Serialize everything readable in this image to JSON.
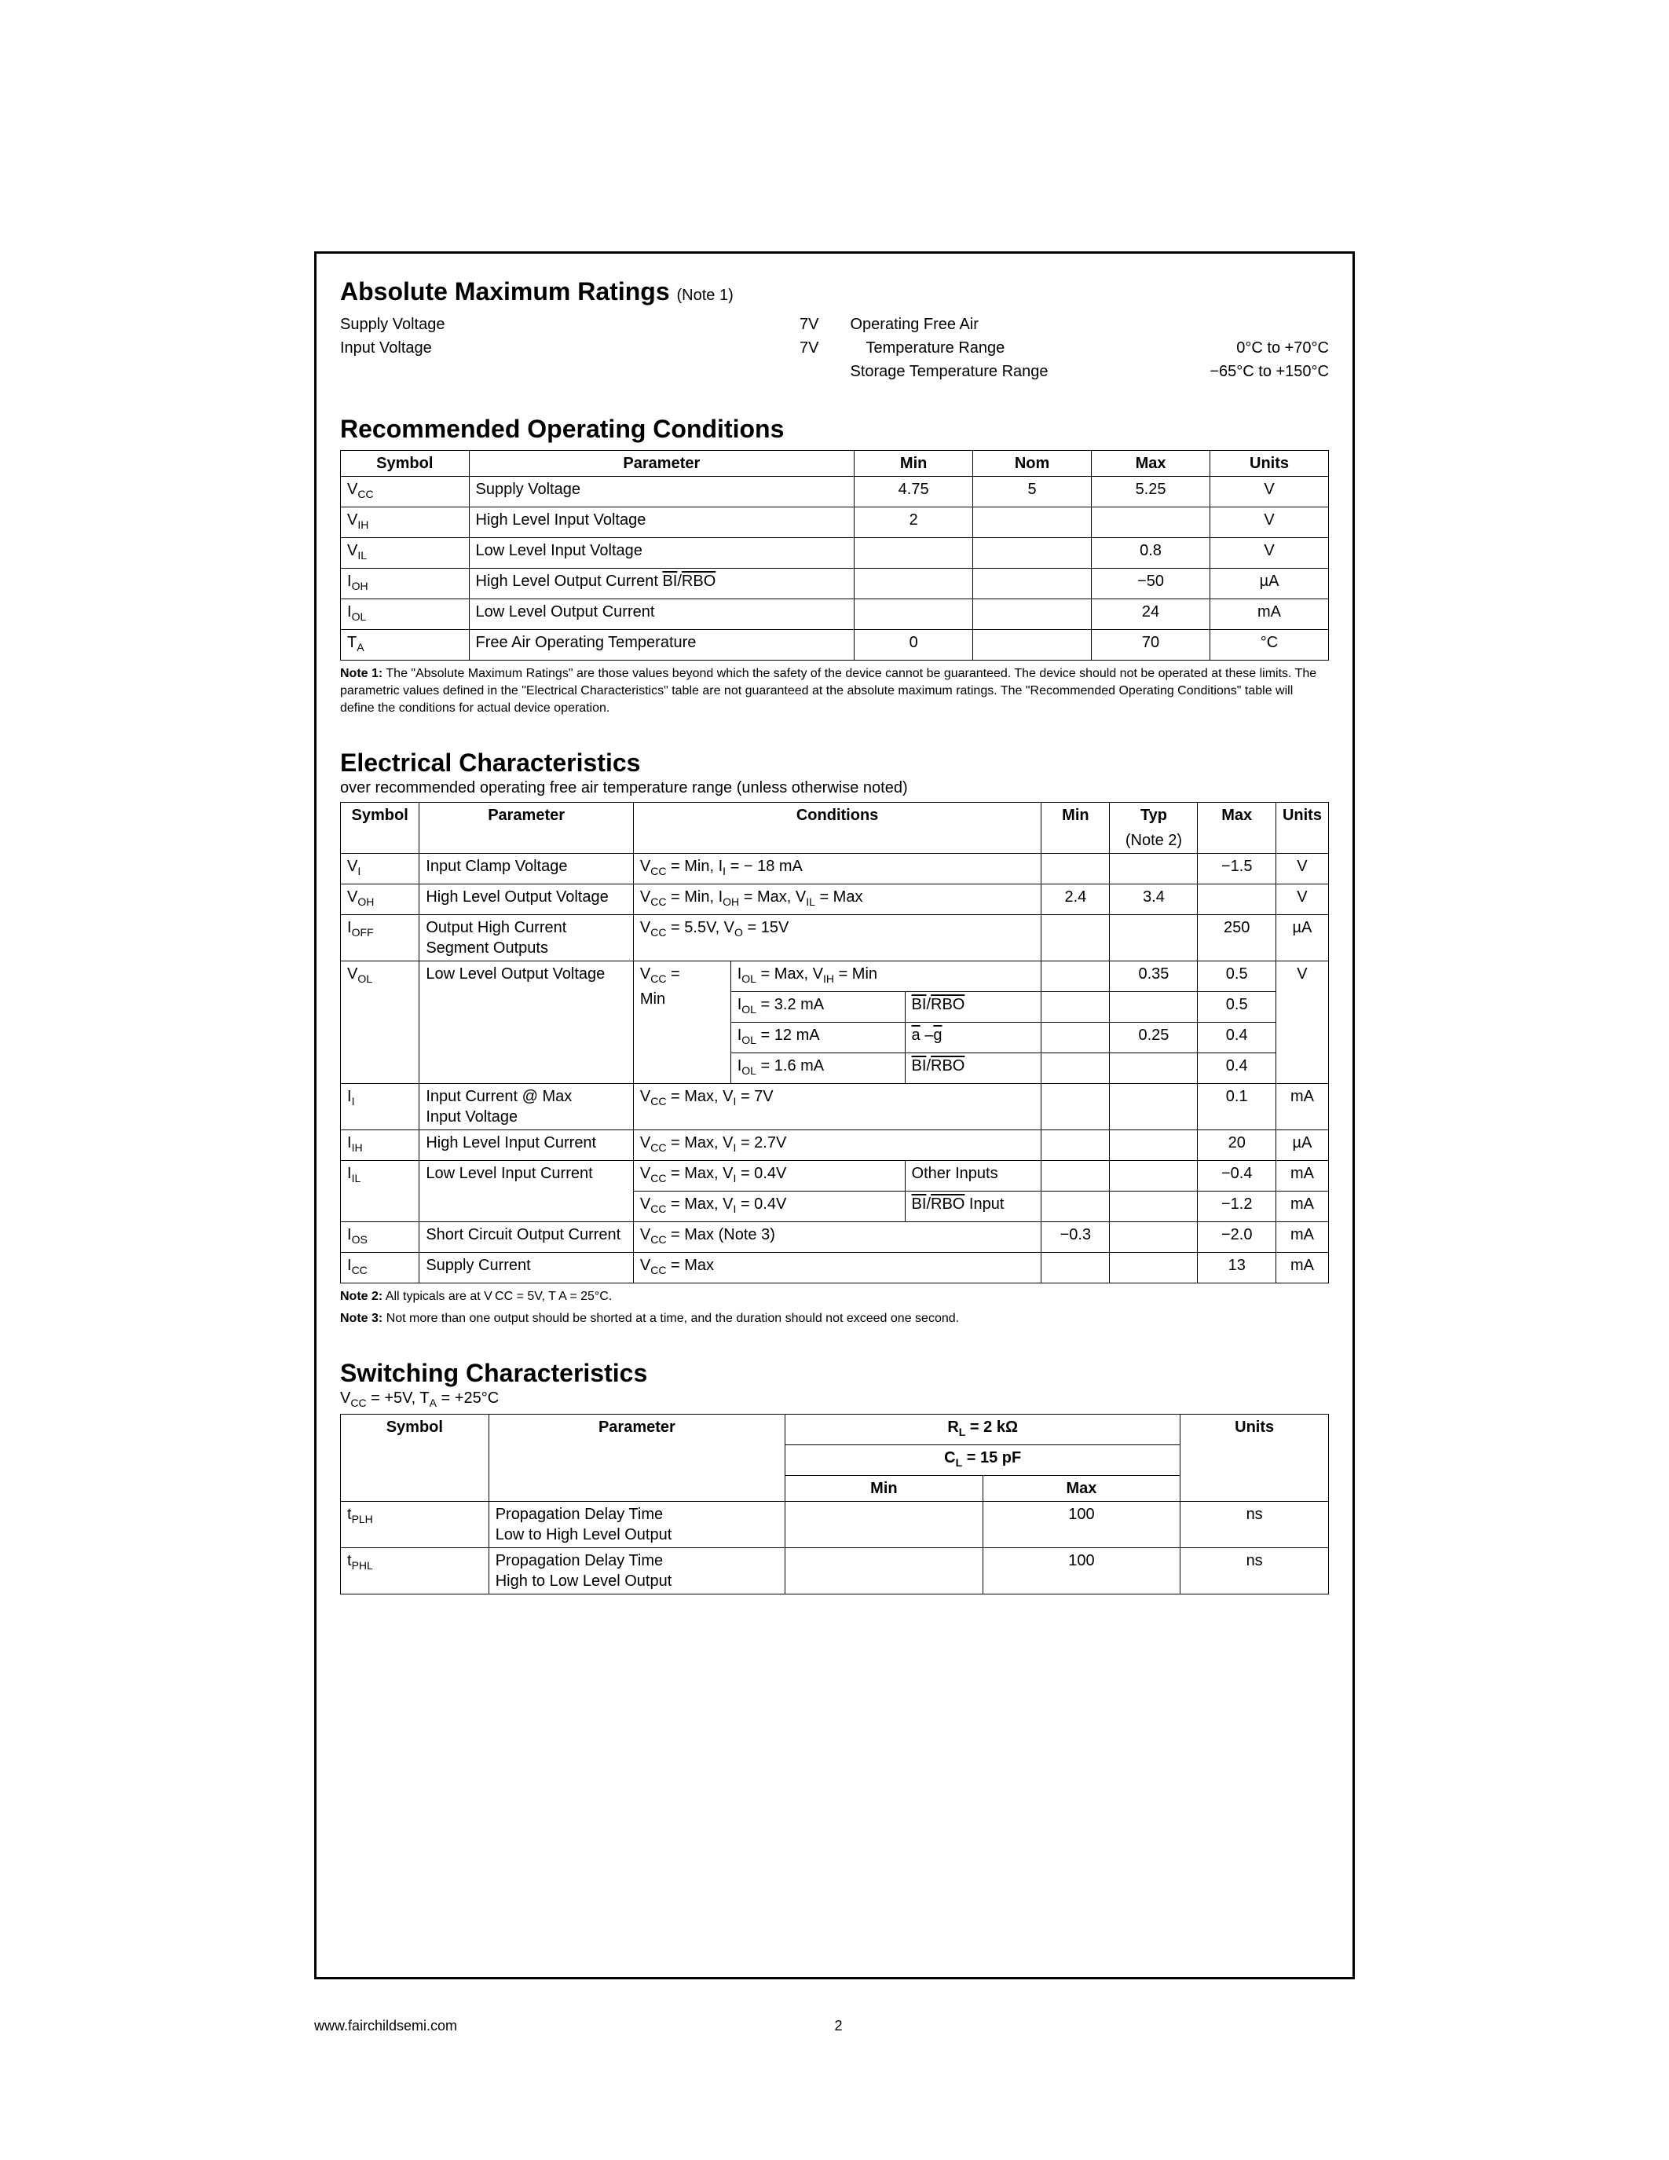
{
  "titles": {
    "amr": "Absolute Maximum Ratings",
    "amr_note": "(Note 1)",
    "roc": "Recommended Operating Conditions",
    "ec": "Electrical Characteristics",
    "ec_sub": "over recommended operating free air temperature range (unless otherwise noted)",
    "sc": "Switching Characteristics",
    "sc_sub": "V CC = +5V, T A = +25°C"
  },
  "amr": {
    "left": [
      {
        "label": "Supply Voltage",
        "value": "7V"
      },
      {
        "label": "Input Voltage",
        "value": "7V"
      }
    ],
    "right": [
      {
        "label": "Operating Free Air",
        "value": ""
      },
      {
        "label": "Temperature Range",
        "indent": true,
        "value": "0°C to +70°C"
      },
      {
        "label": "Storage Temperature Range",
        "value": "−65°C to +150°C"
      }
    ]
  },
  "roc": {
    "headers": [
      "Symbol",
      "Parameter",
      "Min",
      "Nom",
      "Max",
      "Units"
    ],
    "rows": [
      {
        "sym": "V<sub>CC</sub>",
        "param": "Supply Voltage",
        "min": "4.75",
        "nom": "5",
        "max": "5.25",
        "units": "V"
      },
      {
        "sym": "V<sub>IH</sub>",
        "param": "High Level Input Voltage",
        "min": "2",
        "nom": "",
        "max": "",
        "units": "V"
      },
      {
        "sym": "V<sub>IL</sub>",
        "param": "Low Level Input Voltage",
        "min": "",
        "nom": "",
        "max": "0.8",
        "units": "V"
      },
      {
        "sym": "I<sub>OH</sub>",
        "param": "High Level Output Current <span class=\"overline\">BI</span>/<span class=\"overline\">RBO</span>",
        "min": "",
        "nom": "",
        "max": "−50",
        "units": "µA"
      },
      {
        "sym": "I<sub>OL</sub>",
        "param": "Low Level Output Current",
        "min": "",
        "nom": "",
        "max": "24",
        "units": "mA"
      },
      {
        "sym": "T<sub>A</sub>",
        "param": "Free Air Operating Temperature",
        "min": "0",
        "nom": "",
        "max": "70",
        "units": "°C"
      }
    ]
  },
  "note1": "Note 1:  The \"Absolute Maximum Ratings\" are those values beyond which the safety of the device cannot be guaranteed. The device should not be operated at these limits. The parametric values defined in the \"Electrical Characteristics\" table are not guaranteed at the absolute maximum ratings. The \"Recommended Operating Conditions\" table will define the conditions for actual device operation.",
  "ec": {
    "headers": {
      "sym": "Symbol",
      "param": "Parameter",
      "cond": "Conditions",
      "min": "Min",
      "typ": "Typ",
      "typ2": "(Note 2)",
      "max": "Max",
      "units": "Units"
    },
    "rows": {
      "vi": {
        "sym": "V<sub>I</sub>",
        "param": "Input Clamp Voltage",
        "cond": "V<sub>CC</sub> = Min, I<sub>I</sub> = − 18 mA",
        "min": "",
        "typ": "",
        "max": "−1.5",
        "units": "V"
      },
      "voh": {
        "sym": "V<sub>OH</sub>",
        "param": "High Level Output Voltage",
        "cond": "V<sub>CC</sub> = Min, I<sub>OH</sub> = Max, V<sub>IL</sub> = Max",
        "min": "2.4",
        "typ": "3.4",
        "max": "",
        "units": "V"
      },
      "ioff": {
        "sym": "I<sub>OFF</sub>",
        "param": "Output High Current<br>Segment Outputs",
        "cond": "V<sub>CC</sub> = 5.5V, V<sub>O</sub> = 15V",
        "min": "",
        "typ": "",
        "max": "250",
        "units": "µA"
      },
      "vol_sym": "V<sub>OL</sub>",
      "vol_param": "Low Level Output Voltage",
      "vol_c1": "V<sub>CC</sub> =<br>Min",
      "vol_r1": {
        "c2": "I<sub>OL</sub> = Max, V<sub>IH</sub> = Min",
        "min": "",
        "typ": "0.35",
        "max": "0.5",
        "units": "V"
      },
      "vol_r2": {
        "c2": "I<sub>OL</sub> = 3.2 mA",
        "c3": "<span class=\"overline\">BI</span>/<span class=\"overline\">RBO</span>",
        "min": "",
        "typ": "",
        "max": "0.5"
      },
      "vol_r3": {
        "c2": "I<sub>OL</sub> = 12 mA",
        "c3": "<span class=\"overline\">a</span> –<span class=\"overline\">g</span>",
        "min": "",
        "typ": "0.25",
        "max": "0.4"
      },
      "vol_r4": {
        "c2": "I<sub>OL</sub> = 1.6 mA",
        "c3": "<span class=\"overline\">BI</span>/<span class=\"overline\">RBO</span>",
        "min": "",
        "typ": "",
        "max": "0.4"
      },
      "ii": {
        "sym": "I<sub>I</sub>",
        "param": "Input Current @ Max<br>Input Voltage",
        "cond": "V<sub>CC</sub> = Max, V<sub>I</sub> = 7V",
        "min": "",
        "typ": "",
        "max": "0.1",
        "units": "mA"
      },
      "iih": {
        "sym": "I<sub>IH</sub>",
        "param": "High Level Input Current",
        "cond": "V<sub>CC</sub> = Max, V<sub>I</sub> = 2.7V",
        "min": "",
        "typ": "",
        "max": "20",
        "units": "µA"
      },
      "iil_sym": "I<sub>IL</sub>",
      "iil_param": "Low Level Input Current",
      "iil_r1": {
        "cond1": "V<sub>CC</sub> = Max, V<sub>I</sub> = 0.4V",
        "cond2": "Other Inputs",
        "min": "",
        "typ": "",
        "max": "−0.4",
        "units": "mA"
      },
      "iil_r2": {
        "cond1": "V<sub>CC</sub> = Max, V<sub>I</sub> = 0.4V",
        "cond2": "<span class=\"overline\">BI</span>/<span class=\"overline\">RBO</span> Input",
        "min": "",
        "typ": "",
        "max": "−1.2",
        "units": "mA"
      },
      "ios": {
        "sym": "I<sub>OS</sub>",
        "param": "Short Circuit Output Current",
        "cond": "V<sub>CC</sub> = Max (Note 3)",
        "min": "−0.3",
        "typ": "",
        "max": "−2.0",
        "units": "mA"
      },
      "icc": {
        "sym": "I<sub>CC</sub>",
        "param": "Supply Current",
        "cond": "V<sub>CC</sub> = Max",
        "min": "",
        "typ": "",
        "max": "13",
        "units": "mA"
      }
    }
  },
  "note2": "Note 2:  All typicals are at V CC = 5V, T A = 25°C.",
  "note3": "Note 3:  Not more than one output should be shorted at a time, and the duration should not exceed one second.",
  "sc": {
    "headers": {
      "sym": "Symbol",
      "param": "Parameter",
      "rl": "R<sub>L</sub> = 2 kΩ",
      "cl": "C<sub>L</sub> = 15 pF",
      "min": "Min",
      "max": "Max",
      "units": "Units"
    },
    "rows": [
      {
        "sym": "t<sub>PLH</sub>",
        "param": "Propagation Delay Time<br>Low to High Level Output",
        "min": "",
        "max": "100",
        "units": "ns"
      },
      {
        "sym": "t<sub>PHL</sub>",
        "param": "Propagation Delay Time<br>High to Low Level Output",
        "min": "",
        "max": "100",
        "units": "ns"
      }
    ]
  },
  "footer": {
    "url": "www.fairchildsemi.com",
    "page": "2"
  },
  "colwidths": {
    "roc": [
      "13%",
      "39%",
      "12%",
      "12%",
      "12%",
      "12%"
    ],
    "ec": {
      "sym": "8%",
      "param": "22%",
      "cond_total": "38%",
      "min": "7%",
      "typ": "9%",
      "max": "8%",
      "units": "8%",
      "cond_sub1": "10%",
      "cond_sub2": "18%",
      "cond_sub3": "10%",
      "iil_c1": "24%",
      "iil_c2": "14%"
    },
    "sc": {
      "sym": "15%",
      "param": "30%",
      "min": "20%",
      "max": "20%",
      "units": "15%"
    }
  }
}
